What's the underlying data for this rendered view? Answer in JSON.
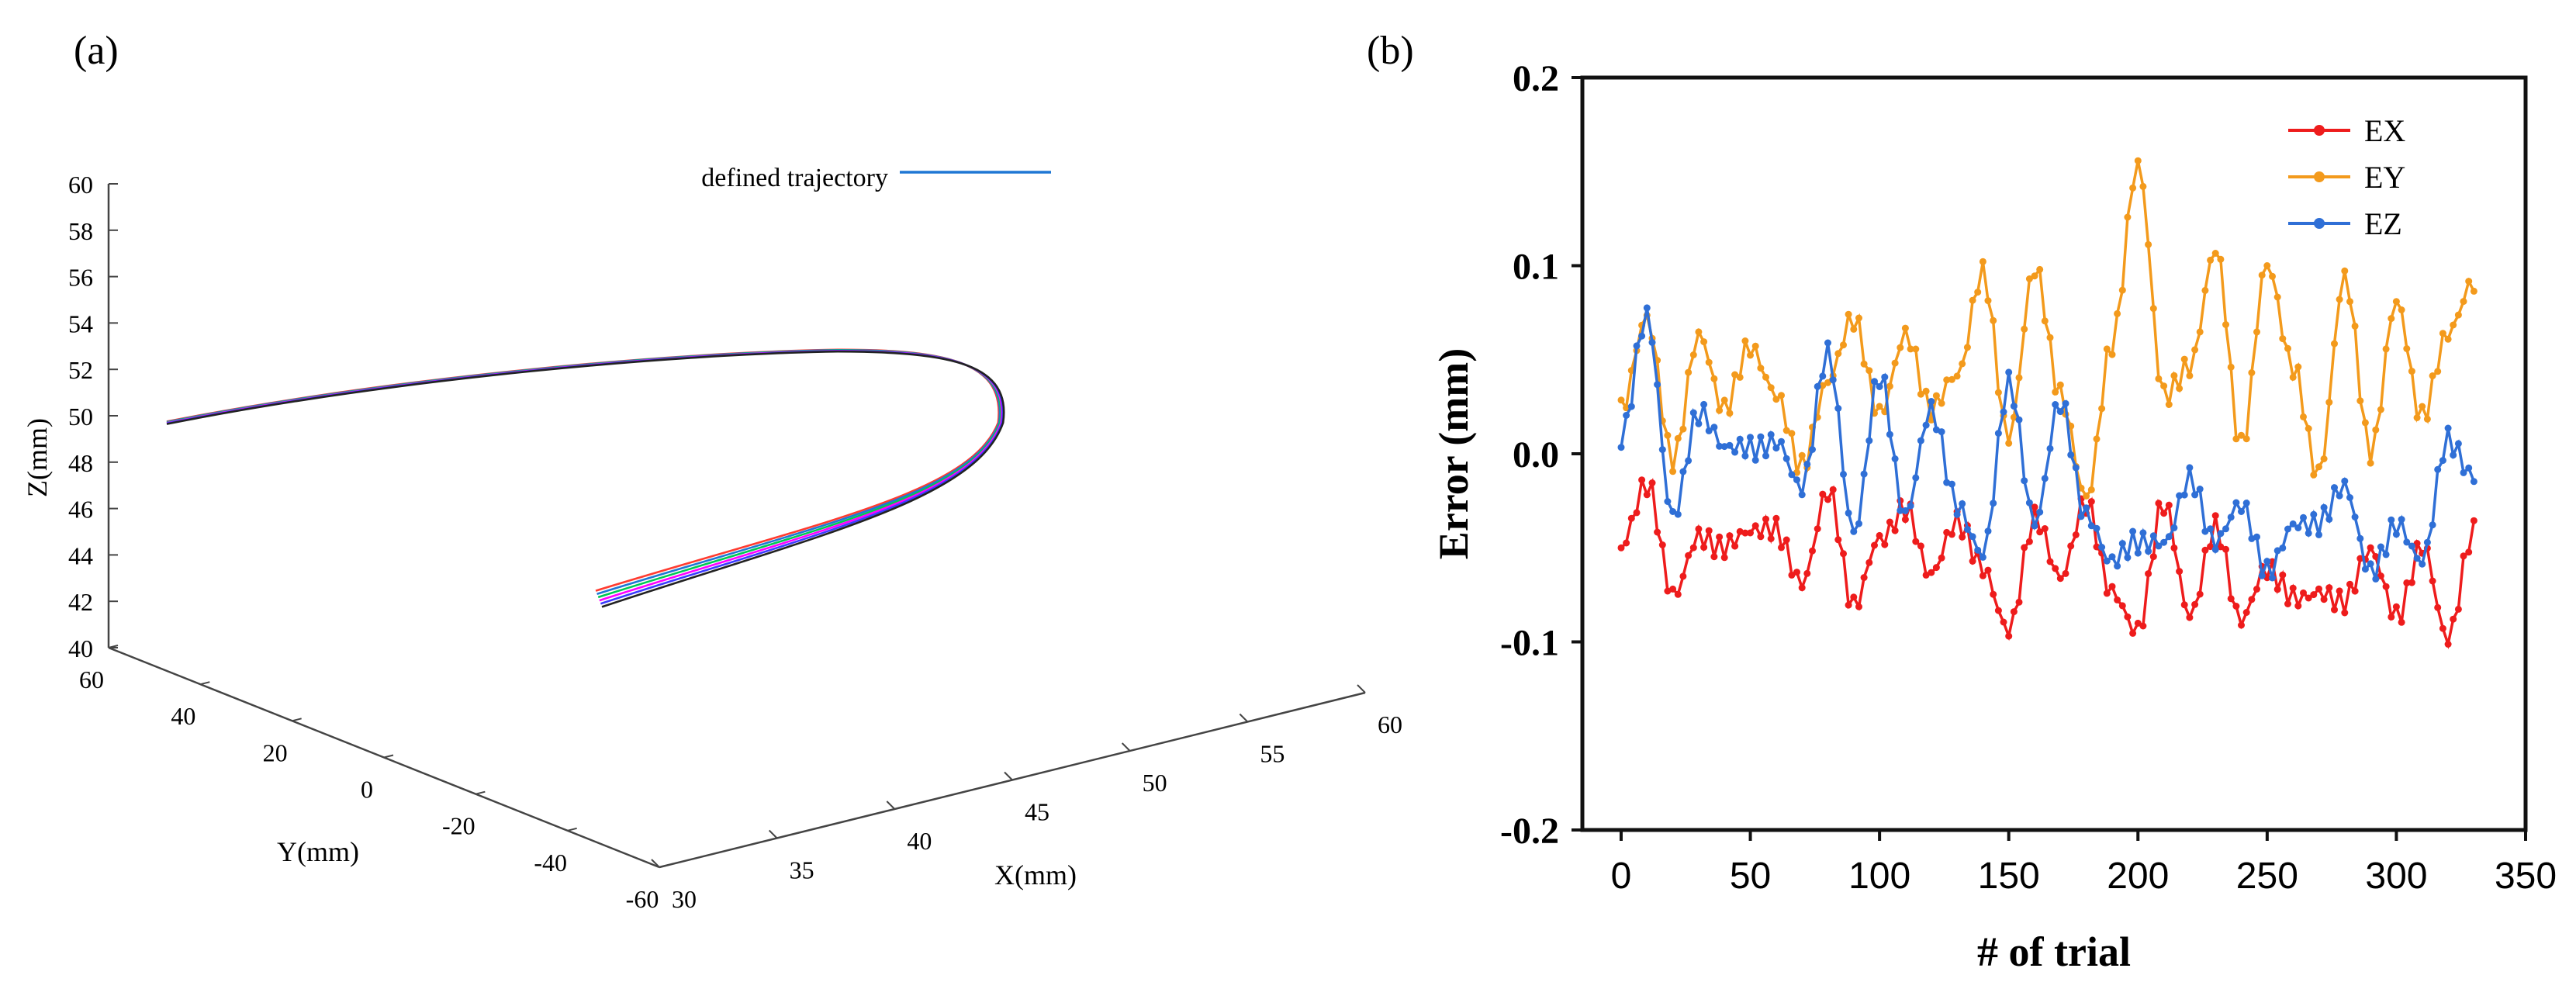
{
  "panel_a": {
    "label": "(a)"
  },
  "panel_b": {
    "label": "(b)"
  },
  "chart_data": [
    {
      "type": "line3d",
      "title": "",
      "legend": [
        "defined trajectory"
      ],
      "legend_position": "top-center",
      "zlabel": "Z(mm)",
      "ylabel": "Y(mm)",
      "xlabel": "X(mm)",
      "zlim": [
        40,
        60
      ],
      "ylim": [
        -60,
        60
      ],
      "xlim": [
        30,
        60
      ],
      "z_ticks": [
        "40",
        "42",
        "44",
        "46",
        "48",
        "50",
        "52",
        "54",
        "56",
        "58",
        "60"
      ],
      "y_ticks": [
        "60",
        "40",
        "20",
        "0",
        "-20",
        "-40",
        "-60"
      ],
      "x_ticks": [
        "30",
        "35",
        "40",
        "45",
        "50",
        "55",
        "60"
      ],
      "colors": {
        "legend_line": "#1f77d4",
        "traces": [
          "#ff3b30",
          "#1f77d4",
          "#00c853",
          "#ff00ff",
          "#3b3bff",
          "#222222"
        ]
      }
    },
    {
      "type": "line",
      "title": "",
      "xlabel": "# of trial",
      "ylabel": "Error (mm)",
      "xlim": [
        -15,
        350
      ],
      "ylim": [
        -0.2,
        0.2
      ],
      "x_ticks": [
        "0",
        "50",
        "100",
        "150",
        "200",
        "250",
        "300",
        "350"
      ],
      "y_ticks": [
        "0.2",
        "0.1",
        "0.0",
        "-0.1",
        "-0.2"
      ],
      "legend_position": "top-right",
      "x_key": [
        0,
        10,
        20,
        30,
        40,
        50,
        60,
        70,
        80,
        90,
        100,
        110,
        120,
        130,
        140,
        150,
        160,
        170,
        180,
        190,
        200,
        210,
        220,
        230,
        240,
        250,
        260,
        270,
        280,
        290,
        300,
        310,
        320,
        330
      ],
      "series": [
        {
          "name": "EX",
          "color": "#ee1c1c",
          "values": [
            -0.05,
            -0.02,
            -0.075,
            -0.04,
            -0.05,
            -0.045,
            -0.04,
            -0.065,
            -0.02,
            -0.085,
            -0.045,
            -0.025,
            -0.065,
            -0.04,
            -0.06,
            -0.09,
            -0.035,
            -0.07,
            -0.025,
            -0.07,
            -0.095,
            -0.03,
            -0.085,
            -0.035,
            -0.09,
            -0.065,
            -0.075,
            -0.07,
            -0.08,
            -0.055,
            -0.085,
            -0.045,
            -0.1,
            -0.045
          ]
        },
        {
          "name": "EY",
          "color": "#f39a1c",
          "values": [
            0.02,
            0.07,
            0.0,
            0.065,
            0.02,
            0.055,
            0.035,
            -0.005,
            0.035,
            0.07,
            0.025,
            0.065,
            0.02,
            0.04,
            0.1,
            0.01,
            0.095,
            0.03,
            -0.02,
            0.06,
            0.15,
            0.03,
            0.05,
            0.11,
            0.0,
            0.1,
            0.05,
            -0.01,
            0.09,
            0.0,
            0.085,
            0.02,
            0.06,
            0.09
          ]
        },
        {
          "name": "EZ",
          "color": "#2f6fd6",
          "values": [
            0.005,
            0.075,
            -0.03,
            0.02,
            0.0,
            0.005,
            0.01,
            -0.02,
            0.05,
            -0.04,
            0.045,
            -0.035,
            0.02,
            -0.025,
            -0.05,
            0.035,
            -0.04,
            0.03,
            -0.03,
            -0.06,
            -0.05,
            -0.045,
            -0.01,
            -0.05,
            -0.03,
            -0.06,
            -0.035,
            -0.04,
            -0.02,
            -0.06,
            -0.035,
            -0.06,
            0.005,
            -0.01
          ]
        }
      ]
    }
  ]
}
